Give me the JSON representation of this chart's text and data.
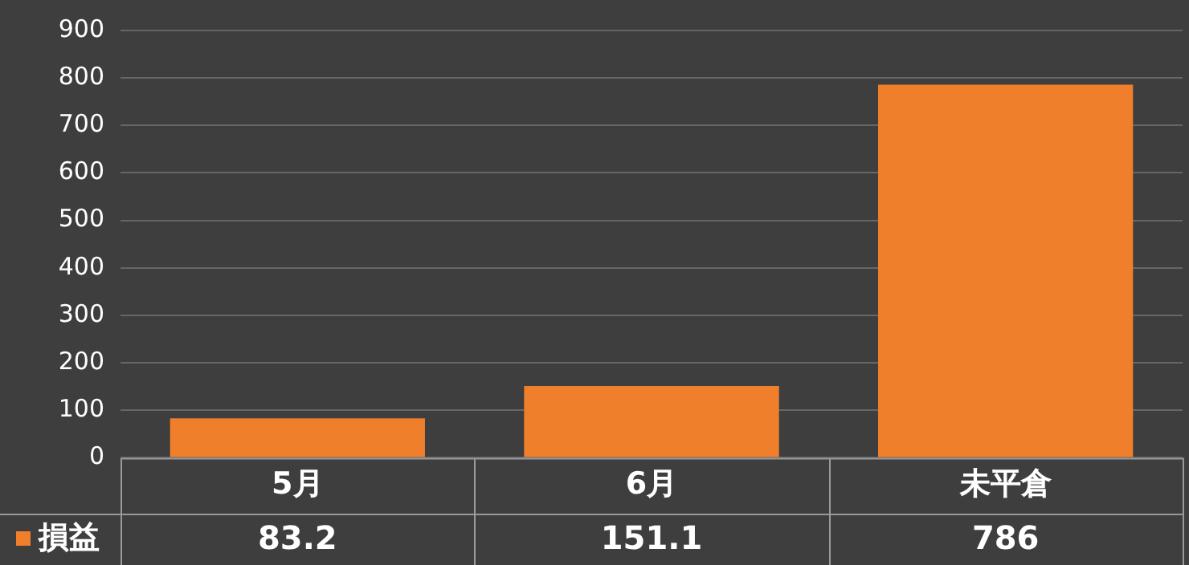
{
  "chart_data": {
    "type": "bar",
    "categories": [
      "5月",
      "6月",
      "未平倉"
    ],
    "series": [
      {
        "name": "損益",
        "color": "#f07f2c",
        "values": [
          83.2,
          151.1,
          786
        ]
      }
    ],
    "ylim": [
      0,
      900
    ],
    "yticks": [
      0,
      100,
      200,
      300,
      400,
      500,
      600,
      700,
      800,
      900
    ],
    "grid": "y",
    "legend": "bottom",
    "data_labels": true
  }
}
